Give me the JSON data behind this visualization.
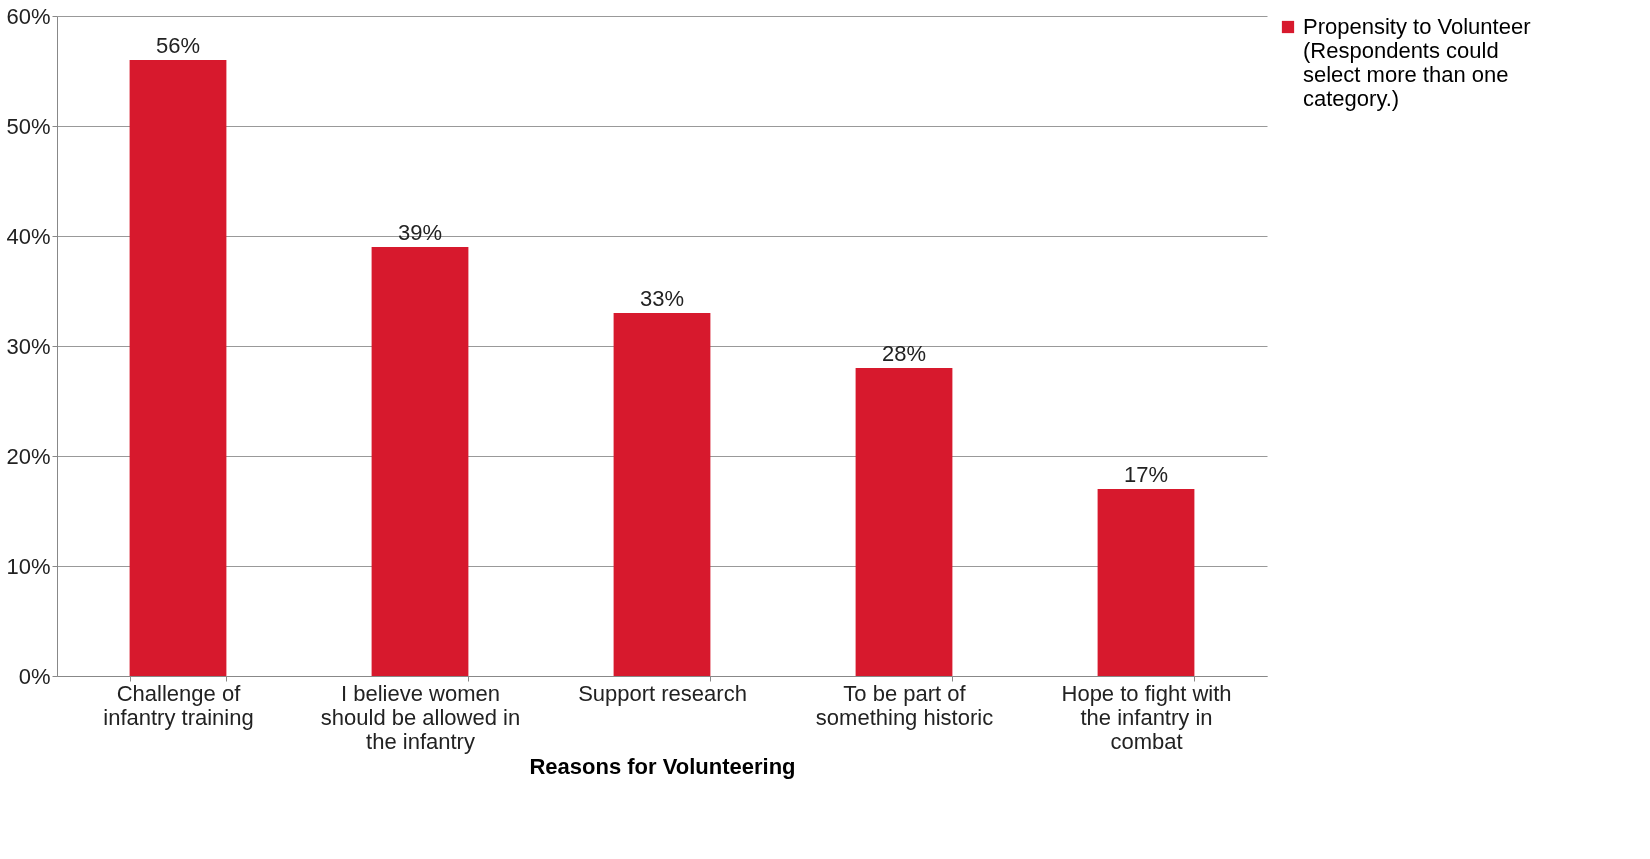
{
  "chart_data": {
    "type": "bar",
    "xlabel": "Reasons for Volunteering",
    "categories": [
      "Challenge of infantry training",
      "I believe women should be allowed in the infantry",
      "Support research",
      "To be part of something historic",
      "Hope to fight with the infantry in combat"
    ],
    "series": [
      {
        "name": "Propensity to Volunteer (Respondents could select more than one category.)",
        "color": "#d7192d",
        "values": [
          56,
          39,
          33,
          28,
          17
        ],
        "value_labels": [
          "56%",
          "39%",
          "33%",
          "28%",
          "17%"
        ]
      }
    ],
    "ylim": [
      0,
      60
    ],
    "yticks": [
      {
        "value": 0,
        "label": "0%"
      },
      {
        "value": 10,
        "label": "10%"
      },
      {
        "value": 20,
        "label": "20%"
      },
      {
        "value": 30,
        "label": "30%"
      },
      {
        "value": 40,
        "label": "40%"
      },
      {
        "value": 50,
        "label": "50%"
      },
      {
        "value": 60,
        "label": "60%"
      }
    ],
    "grid": "y",
    "legend": "right"
  }
}
